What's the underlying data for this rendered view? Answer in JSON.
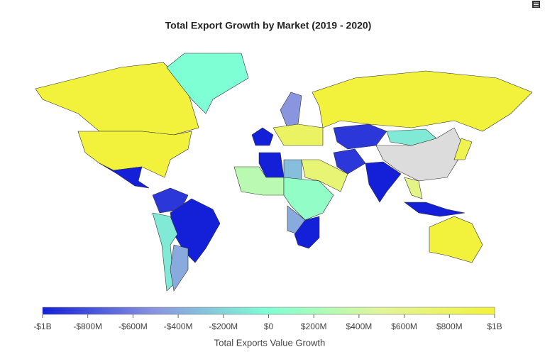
{
  "chart_data": {
    "type": "choropleth",
    "title": "Total Export Growth by Market (2019 - 2020)",
    "colorbar_title": "Total Exports Value Growth",
    "colorscale": [
      "#1420d8",
      "#8a95e0",
      "#7fffd4",
      "#e2f59a",
      "#f2f23c"
    ],
    "nan_color": "#dcdcdc",
    "values": [
      1000000000,
      1000000000,
      -1000000000,
      0,
      -900000000,
      -1000000000,
      -100000000,
      -400000000,
      -1000000000,
      -500000000,
      800000000,
      1000000000,
      -900000000,
      -100000000,
      null,
      -900000000,
      -1000000000,
      600000000,
      900000000,
      -1000000000,
      1000000000,
      -1000000000,
      -300000000,
      700000000,
      300000000,
      100000000,
      -400000000,
      -1000000000
    ],
    "clim": [
      -1000000000,
      1000000000
    ],
    "ticks": [
      {
        "value": -1000000000,
        "label": "-$1B"
      },
      {
        "value": -800000000,
        "label": "-$800M"
      },
      {
        "value": -600000000,
        "label": "-$600M"
      },
      {
        "value": -400000000,
        "label": "-$400M"
      },
      {
        "value": -200000000,
        "label": "-$200M"
      },
      {
        "value": 0,
        "label": "$0"
      },
      {
        "value": 200000000,
        "label": "$200M"
      },
      {
        "value": 400000000,
        "label": "$400M"
      },
      {
        "value": 600000000,
        "label": "$600M"
      },
      {
        "value": 800000000,
        "label": "$800M"
      },
      {
        "value": 1000000000,
        "label": "$1B"
      }
    ]
  }
}
